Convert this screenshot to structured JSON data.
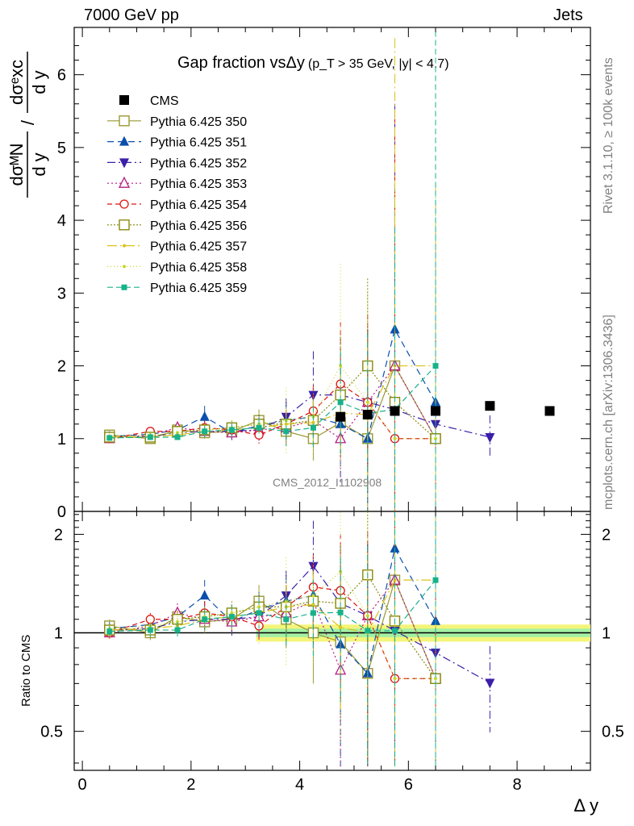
{
  "header": {
    "left": "7000 GeV pp",
    "right": "Jets"
  },
  "side": {
    "rivet": "Rivet 3.1.10, ≥ 100k events",
    "mcplots": "mcplots.cern.ch [arXiv:1306.3436]"
  },
  "watermark": "CMS_2012_I1102908",
  "colors": {
    "CMS": "#000000",
    "350": "#999933",
    "351": "#0b4fae",
    "352": "#3b1fa8",
    "353": "#b81c80",
    "354": "#dd1111",
    "356": "#8a8a10",
    "357": "#d9c21a",
    "358": "#c8d82a",
    "359": "#18b28a",
    "band_inner": "#a4f0a4",
    "band_outer": "#f4f47a"
  },
  "chart_data": [
    {
      "type": "scatter",
      "title_main": "Gap fraction vs",
      "title_var": "Δy",
      "title_cut": "(p_T > 35 GeV, |y| < 4.7)",
      "ylabel": "dσ^M N/dy / dσ^e xc/dy",
      "xlabel": "Δ y",
      "xlim": [
        -0.15,
        9.35
      ],
      "ylim": [
        0,
        6.65
      ],
      "xticks": [
        "0",
        "2",
        "4",
        "6",
        "8"
      ],
      "yticks": [
        "0",
        "1",
        "2",
        "3",
        "4",
        "5",
        "6"
      ],
      "legend_position": "top-left",
      "series": [
        {
          "name": "CMS",
          "key": "CMS",
          "marker": "square-filled",
          "dash": "none",
          "x": [
            4.75,
            5.25,
            5.75,
            6.5,
            7.5,
            8.6
          ],
          "y": [
            1.3,
            1.33,
            1.38,
            1.38,
            1.45,
            1.38
          ]
        },
        {
          "name": "Pythia 6.425 350",
          "key": "350",
          "marker": "square-open",
          "dash": "solid",
          "x": [
            0.5,
            1.25,
            1.75,
            2.25,
            2.75,
            3.25,
            3.75,
            4.25,
            4.75,
            5.25,
            5.75,
            6.5
          ],
          "y": [
            1.05,
            1.0,
            1.12,
            1.08,
            1.1,
            1.25,
            1.1,
            1.0,
            1.22,
            1.0,
            2.0,
            1.0
          ],
          "err": [
            0.05,
            0.05,
            0.07,
            0.08,
            0.1,
            0.15,
            0.2,
            0.3,
            0.5,
            1.5,
            2.5,
            3.0
          ]
        },
        {
          "name": "Pythia 6.425 351",
          "key": "351",
          "marker": "triangle-up-filled",
          "dash": "8,5",
          "x": [
            0.5,
            1.25,
            1.75,
            2.25,
            2.75,
            3.25,
            3.75,
            4.25,
            4.75,
            5.25,
            5.75,
            6.5
          ],
          "y": [
            1.03,
            1.06,
            1.12,
            1.3,
            1.08,
            1.18,
            1.25,
            1.3,
            1.2,
            1.0,
            2.5,
            1.5
          ],
          "err": [
            0.05,
            0.05,
            0.07,
            0.15,
            0.1,
            0.15,
            0.25,
            0.4,
            0.8,
            1.5,
            3.0,
            1.0
          ]
        },
        {
          "name": "Pythia 6.425 352",
          "key": "352",
          "marker": "triangle-down-filled",
          "dash": "10,4,2,4",
          "x": [
            0.5,
            1.25,
            1.75,
            2.25,
            2.75,
            3.25,
            3.75,
            4.25,
            4.75,
            5.25,
            5.75,
            6.5,
            7.5
          ],
          "y": [
            1.02,
            1.03,
            1.08,
            1.1,
            1.1,
            1.12,
            1.3,
            1.6,
            1.6,
            1.5,
            1.4,
            1.2,
            1.02
          ],
          "err": [
            0.04,
            0.05,
            0.06,
            0.08,
            0.1,
            0.15,
            0.25,
            0.6,
            0.8,
            1.0,
            4.2,
            1.2,
            0.3
          ]
        },
        {
          "name": "Pythia 6.425 353",
          "key": "353",
          "marker": "triangle-up-open",
          "dash": "2,3",
          "x": [
            0.5,
            1.25,
            1.75,
            2.25,
            2.75,
            3.25,
            3.75,
            4.25,
            4.75,
            5.25,
            5.75,
            6.5
          ],
          "y": [
            1.0,
            1.05,
            1.15,
            1.1,
            1.08,
            1.12,
            1.15,
            1.25,
            1.0,
            1.5,
            2.0,
            1.0
          ],
          "err": [
            0.04,
            0.05,
            0.08,
            0.08,
            0.1,
            0.15,
            0.2,
            0.35,
            0.6,
            1.0,
            3.0,
            1.5
          ]
        },
        {
          "name": "Pythia 6.425 354",
          "key": "354",
          "marker": "circle-open",
          "dash": "6,4",
          "x": [
            0.5,
            1.25,
            1.75,
            2.25,
            2.75,
            3.25,
            3.75,
            4.25,
            4.75,
            5.25,
            5.75,
            6.5
          ],
          "y": [
            1.0,
            1.1,
            1.1,
            1.15,
            1.12,
            1.05,
            1.2,
            1.38,
            1.75,
            1.5,
            1.0,
            1.0
          ],
          "err": [
            0.04,
            0.05,
            0.07,
            0.1,
            0.1,
            0.12,
            0.2,
            0.35,
            0.85,
            1.2,
            4.5,
            1.2
          ]
        },
        {
          "name": "Pythia 6.425 356",
          "key": "356",
          "marker": "square-open",
          "dash": "2,2",
          "x": [
            0.5,
            1.25,
            1.75,
            2.25,
            2.75,
            3.25,
            3.75,
            4.25,
            4.75,
            5.25,
            5.75,
            6.5
          ],
          "y": [
            1.02,
            1.02,
            1.1,
            1.12,
            1.15,
            1.2,
            1.2,
            1.25,
            1.6,
            2.0,
            1.5,
            1.0
          ],
          "err": [
            0.04,
            0.05,
            0.07,
            0.08,
            0.1,
            0.12,
            0.2,
            0.3,
            0.8,
            1.2,
            3.0,
            1.5
          ]
        },
        {
          "name": "Pythia 6.425 357",
          "key": "357",
          "marker": "dot",
          "dash": "12,4,2,4",
          "x": [
            0.5,
            1.25,
            1.75,
            2.25,
            2.75,
            3.25,
            3.75,
            4.25,
            4.75,
            5.25,
            5.75,
            6.5
          ],
          "y": [
            1.02,
            1.03,
            1.05,
            1.1,
            1.12,
            1.15,
            1.2,
            1.22,
            1.35,
            1.33,
            2.0,
            2.0
          ],
          "err": [
            0.04,
            0.05,
            0.06,
            0.08,
            0.1,
            0.12,
            0.2,
            0.3,
            0.6,
            1.0,
            4.5,
            2.5
          ]
        },
        {
          "name": "Pythia 6.425 358",
          "key": "358",
          "marker": "dot",
          "dash": "1,3",
          "x": [
            0.5,
            1.25,
            1.75,
            2.25,
            2.75,
            3.25,
            3.75,
            4.25,
            4.75,
            5.25,
            5.75,
            6.5
          ],
          "y": [
            1.03,
            1.05,
            1.08,
            1.12,
            1.15,
            1.2,
            1.25,
            1.3,
            2.0,
            1.5,
            1.0,
            1.0
          ],
          "err": [
            0.04,
            0.05,
            0.07,
            0.08,
            0.1,
            0.15,
            0.45,
            0.5,
            1.4,
            1.5,
            3.5,
            1.5
          ]
        },
        {
          "name": "Pythia 6.425 359",
          "key": "359",
          "marker": "square-small-filled",
          "dash": "7,4",
          "x": [
            0.5,
            1.25,
            1.75,
            2.25,
            2.75,
            3.25,
            3.75,
            4.25,
            4.75,
            5.25,
            5.75,
            6.5
          ],
          "y": [
            1.01,
            1.02,
            1.02,
            1.1,
            1.12,
            1.15,
            1.1,
            1.15,
            1.5,
            1.35,
            1.4,
            2.0
          ],
          "err": [
            0.04,
            0.05,
            0.06,
            0.08,
            0.1,
            0.12,
            0.2,
            0.3,
            0.7,
            1.1,
            2.5,
            4.6
          ]
        }
      ]
    },
    {
      "type": "scatter",
      "title": "",
      "ylabel": "Ratio to CMS",
      "xlabel": "Δ y",
      "xlim": [
        -0.15,
        9.35
      ],
      "ylim": [
        0.38,
        2.35
      ],
      "ytick_labels": [
        "0.5",
        "1",
        "2"
      ],
      "ytick_values": [
        0.5,
        1,
        2
      ],
      "reference_line": 1,
      "band_x": [
        3.2,
        9.35
      ],
      "band_inner_halfwidth": 0.03,
      "band_outer_halfwidth": 0.06
    }
  ]
}
